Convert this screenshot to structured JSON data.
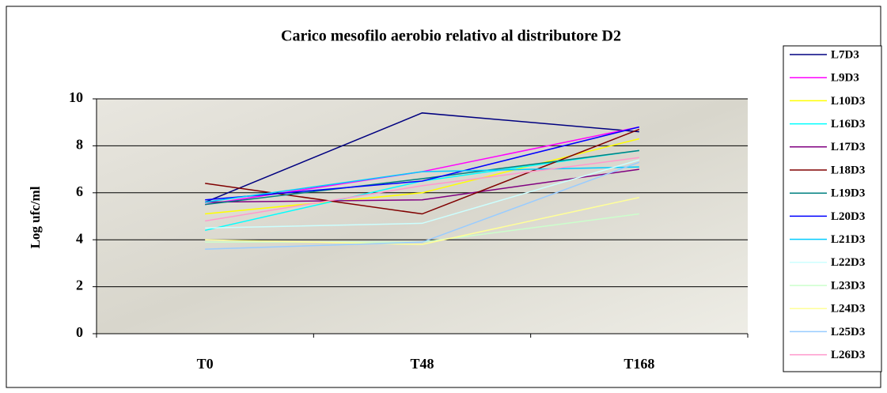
{
  "chart_data": {
    "type": "line",
    "title": "Carico mesofilo aerobio relativo al distributore D2",
    "y_label": "Log ufc/ml",
    "categories": [
      "T0",
      "T48",
      "T168"
    ],
    "ylim": [
      0,
      10
    ],
    "yticks": [
      0,
      2,
      4,
      6,
      8,
      10
    ],
    "grid": true,
    "legend": "right",
    "series": [
      {
        "name": "L7D3",
        "color": "#000080",
        "values": [
          5.6,
          9.4,
          8.6
        ]
      },
      {
        "name": "L9D3",
        "color": "#ff00ff",
        "values": [
          5.5,
          6.9,
          8.8
        ]
      },
      {
        "name": "L10D3",
        "color": "#ffff00",
        "values": [
          5.1,
          6.0,
          8.3
        ]
      },
      {
        "name": "L16D3",
        "color": "#00ffff",
        "values": [
          4.4,
          6.5,
          7.8
        ]
      },
      {
        "name": "L17D3",
        "color": "#800080",
        "values": [
          5.6,
          5.7,
          7.0
        ]
      },
      {
        "name": "L18D3",
        "color": "#800000",
        "values": [
          6.4,
          5.1,
          8.7
        ]
      },
      {
        "name": "L19D3",
        "color": "#008080",
        "values": [
          5.5,
          6.6,
          7.8
        ]
      },
      {
        "name": "L20D3",
        "color": "#0000ff",
        "values": [
          5.7,
          6.5,
          8.8
        ]
      },
      {
        "name": "L21D3",
        "color": "#00ccff",
        "values": [
          5.6,
          6.9,
          7.1
        ]
      },
      {
        "name": "L22D3",
        "color": "#ccffff",
        "values": [
          4.5,
          4.7,
          7.4
        ]
      },
      {
        "name": "L23D3",
        "color": "#ccffcc",
        "values": [
          3.9,
          3.9,
          5.1
        ]
      },
      {
        "name": "L24D3",
        "color": "#ffff99",
        "values": [
          4.0,
          3.8,
          5.8
        ]
      },
      {
        "name": "L25D3",
        "color": "#99ccff",
        "values": [
          3.6,
          3.9,
          7.3
        ]
      },
      {
        "name": "L26D3",
        "color": "#ff99cc",
        "values": [
          4.8,
          6.3,
          7.5
        ]
      }
    ]
  }
}
